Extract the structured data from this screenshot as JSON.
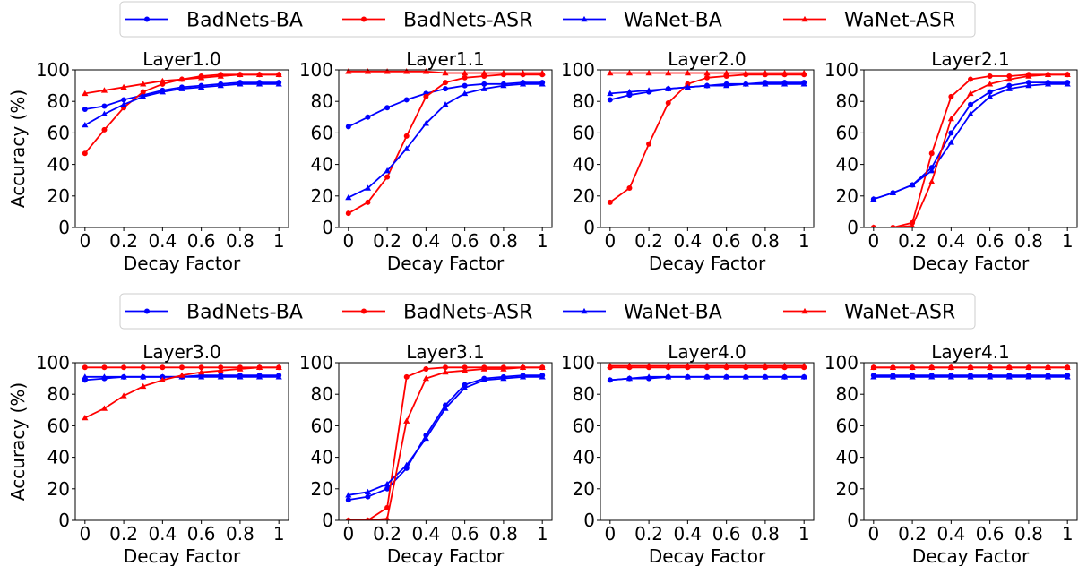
{
  "legend": {
    "entries": [
      {
        "label": "BadNets-BA",
        "color": "#0000ff",
        "marker": "circle"
      },
      {
        "label": "BadNets-ASR",
        "color": "#ff0000",
        "marker": "circle"
      },
      {
        "label": "WaNet-BA",
        "color": "#0000ff",
        "marker": "triangle"
      },
      {
        "label": "WaNet-ASR",
        "color": "#ff0000",
        "marker": "triangle"
      }
    ]
  },
  "chart_data": [
    {
      "type": "line",
      "title": "Layer1.0",
      "xlabel": "Decay Factor",
      "ylabel": "Accuracy (%)",
      "x": [
        0,
        0.1,
        0.2,
        0.3,
        0.4,
        0.5,
        0.6,
        0.7,
        0.8,
        0.9,
        1
      ],
      "xticks": [
        0,
        0.2,
        0.4,
        0.6,
        0.8,
        1
      ],
      "xtick_labels": [
        "0",
        "0.2",
        "0.4",
        "0.6",
        "0.8",
        "1"
      ],
      "yticks": [
        0,
        20,
        40,
        60,
        80,
        100
      ],
      "xlim": [
        -0.05,
        1.05
      ],
      "ylim": [
        0,
        100
      ],
      "grid": false,
      "series": [
        {
          "name": "BadNets-BA",
          "color": "#0000ff",
          "marker": "circle",
          "values": [
            75,
            77,
            81,
            84,
            87,
            89,
            90,
            91,
            92,
            92,
            92
          ]
        },
        {
          "name": "BadNets-ASR",
          "color": "#ff0000",
          "marker": "circle",
          "values": [
            47,
            62,
            76,
            86,
            91,
            94,
            96,
            97,
            97,
            97,
            97
          ]
        },
        {
          "name": "WaNet-BA",
          "color": "#0000ff",
          "marker": "triangle",
          "values": [
            65,
            72,
            78,
            83,
            86,
            88,
            89,
            90,
            91,
            91,
            91
          ]
        },
        {
          "name": "WaNet-ASR",
          "color": "#ff0000",
          "marker": "triangle",
          "values": [
            85,
            87,
            89,
            91,
            93,
            94,
            95,
            96,
            97,
            97,
            97
          ]
        }
      ]
    },
    {
      "type": "line",
      "title": "Layer1.1",
      "xlabel": "Decay Factor",
      "ylabel": "",
      "x": [
        0,
        0.1,
        0.2,
        0.3,
        0.4,
        0.5,
        0.6,
        0.7,
        0.8,
        0.9,
        1
      ],
      "xticks": [
        0,
        0.2,
        0.4,
        0.6,
        0.8,
        1
      ],
      "xtick_labels": [
        "0",
        "0.2",
        "0.4",
        "0.6",
        "0.8",
        "1"
      ],
      "yticks": [
        0,
        20,
        40,
        60,
        80,
        100
      ],
      "xlim": [
        -0.05,
        1.05
      ],
      "ylim": [
        0,
        100
      ],
      "grid": false,
      "series": [
        {
          "name": "BadNets-BA",
          "color": "#0000ff",
          "marker": "circle",
          "values": [
            64,
            70,
            76,
            81,
            85,
            88,
            90,
            91,
            91,
            92,
            92
          ]
        },
        {
          "name": "BadNets-ASR",
          "color": "#ff0000",
          "marker": "circle",
          "values": [
            9,
            16,
            32,
            58,
            83,
            92,
            95,
            96,
            97,
            97,
            97
          ]
        },
        {
          "name": "WaNet-BA",
          "color": "#0000ff",
          "marker": "triangle",
          "values": [
            19,
            25,
            36,
            50,
            66,
            78,
            85,
            88,
            90,
            91,
            91
          ]
        },
        {
          "name": "WaNet-ASR",
          "color": "#ff0000",
          "marker": "triangle",
          "values": [
            99,
            99,
            99,
            99,
            99,
            98,
            98,
            98,
            98,
            98,
            98
          ]
        }
      ]
    },
    {
      "type": "line",
      "title": "Layer2.0",
      "xlabel": "Decay Factor",
      "ylabel": "",
      "x": [
        0,
        0.1,
        0.2,
        0.3,
        0.4,
        0.5,
        0.6,
        0.7,
        0.8,
        0.9,
        1
      ],
      "xticks": [
        0,
        0.2,
        0.4,
        0.6,
        0.8,
        1
      ],
      "xtick_labels": [
        "0",
        "0.2",
        "0.4",
        "0.6",
        "0.8",
        "1"
      ],
      "yticks": [
        0,
        20,
        40,
        60,
        80,
        100
      ],
      "xlim": [
        -0.05,
        1.05
      ],
      "ylim": [
        0,
        100
      ],
      "grid": false,
      "series": [
        {
          "name": "BadNets-BA",
          "color": "#0000ff",
          "marker": "circle",
          "values": [
            81,
            84,
            86,
            88,
            89,
            90,
            91,
            91,
            92,
            92,
            92
          ]
        },
        {
          "name": "BadNets-ASR",
          "color": "#ff0000",
          "marker": "circle",
          "values": [
            16,
            25,
            53,
            79,
            91,
            95,
            96,
            97,
            97,
            97,
            97
          ]
        },
        {
          "name": "WaNet-BA",
          "color": "#0000ff",
          "marker": "triangle",
          "values": [
            85,
            86,
            87,
            88,
            89,
            90,
            90,
            91,
            91,
            91,
            91
          ]
        },
        {
          "name": "WaNet-ASR",
          "color": "#ff0000",
          "marker": "triangle",
          "values": [
            98,
            98,
            98,
            98,
            98,
            98,
            98,
            98,
            98,
            98,
            98
          ]
        }
      ]
    },
    {
      "type": "line",
      "title": "Layer2.1",
      "xlabel": "Decay Factor",
      "ylabel": "",
      "x": [
        0,
        0.1,
        0.2,
        0.3,
        0.4,
        0.5,
        0.6,
        0.7,
        0.8,
        0.9,
        1
      ],
      "xticks": [
        0,
        0.2,
        0.4,
        0.6,
        0.8,
        1
      ],
      "xtick_labels": [
        "0",
        "0.2",
        "0.4",
        "0.6",
        "0.8",
        "1"
      ],
      "yticks": [
        0,
        20,
        40,
        60,
        80,
        100
      ],
      "xlim": [
        -0.05,
        1.05
      ],
      "ylim": [
        0,
        100
      ],
      "grid": false,
      "series": [
        {
          "name": "BadNets-BA",
          "color": "#0000ff",
          "marker": "circle",
          "values": [
            18,
            22,
            27,
            38,
            60,
            78,
            86,
            90,
            92,
            92,
            92
          ]
        },
        {
          "name": "BadNets-ASR",
          "color": "#ff0000",
          "marker": "circle",
          "values": [
            0,
            0,
            3,
            47,
            83,
            94,
            96,
            96,
            97,
            97,
            97
          ]
        },
        {
          "name": "WaNet-BA",
          "color": "#0000ff",
          "marker": "triangle",
          "values": [
            18,
            22,
            27,
            36,
            54,
            72,
            83,
            88,
            90,
            91,
            91
          ]
        },
        {
          "name": "WaNet-ASR",
          "color": "#ff0000",
          "marker": "triangle",
          "values": [
            0,
            0,
            1,
            29,
            69,
            85,
            91,
            94,
            96,
            97,
            97
          ]
        }
      ]
    },
    {
      "type": "line",
      "title": "Layer3.0",
      "xlabel": "Decay Factor",
      "ylabel": "Accuracy (%)",
      "x": [
        0,
        0.1,
        0.2,
        0.3,
        0.4,
        0.5,
        0.6,
        0.7,
        0.8,
        0.9,
        1
      ],
      "xticks": [
        0,
        0.2,
        0.4,
        0.6,
        0.8,
        1
      ],
      "xtick_labels": [
        "0",
        "0.2",
        "0.4",
        "0.6",
        "0.8",
        "1"
      ],
      "yticks": [
        0,
        20,
        40,
        60,
        80,
        100
      ],
      "xlim": [
        -0.05,
        1.05
      ],
      "ylim": [
        0,
        100
      ],
      "grid": false,
      "series": [
        {
          "name": "BadNets-BA",
          "color": "#0000ff",
          "marker": "circle",
          "values": [
            89,
            90,
            91,
            91,
            91,
            91,
            92,
            92,
            92,
            92,
            92
          ]
        },
        {
          "name": "BadNets-ASR",
          "color": "#ff0000",
          "marker": "circle",
          "values": [
            97,
            97,
            97,
            97,
            97,
            97,
            97,
            97,
            97,
            97,
            97
          ]
        },
        {
          "name": "WaNet-BA",
          "color": "#0000ff",
          "marker": "triangle",
          "values": [
            91,
            91,
            91,
            91,
            91,
            91,
            91,
            91,
            91,
            91,
            91
          ]
        },
        {
          "name": "WaNet-ASR",
          "color": "#ff0000",
          "marker": "triangle",
          "values": [
            65,
            71,
            79,
            85,
            89,
            92,
            94,
            95,
            96,
            97,
            97
          ]
        }
      ]
    },
    {
      "type": "line",
      "title": "Layer3.1",
      "xlabel": "Decay Factor",
      "ylabel": "",
      "x": [
        0,
        0.1,
        0.2,
        0.3,
        0.4,
        0.5,
        0.6,
        0.7,
        0.8,
        0.9,
        1
      ],
      "xticks": [
        0,
        0.2,
        0.4,
        0.6,
        0.8,
        1
      ],
      "xtick_labels": [
        "0",
        "0.2",
        "0.4",
        "0.6",
        "0.8",
        "1"
      ],
      "yticks": [
        0,
        20,
        40,
        60,
        80,
        100
      ],
      "xlim": [
        -0.05,
        1.05
      ],
      "ylim": [
        0,
        100
      ],
      "grid": false,
      "series": [
        {
          "name": "BadNets-BA",
          "color": "#0000ff",
          "marker": "circle",
          "values": [
            13,
            15,
            20,
            33,
            54,
            73,
            86,
            90,
            91,
            92,
            92
          ]
        },
        {
          "name": "BadNets-ASR",
          "color": "#ff0000",
          "marker": "circle",
          "values": [
            0,
            0,
            8,
            91,
            96,
            97,
            97,
            97,
            97,
            97,
            97
          ]
        },
        {
          "name": "WaNet-BA",
          "color": "#0000ff",
          "marker": "triangle",
          "values": [
            16,
            18,
            23,
            35,
            52,
            71,
            84,
            89,
            90,
            91,
            91
          ]
        },
        {
          "name": "WaNet-ASR",
          "color": "#ff0000",
          "marker": "triangle",
          "values": [
            0,
            0,
            1,
            63,
            90,
            94,
            95,
            96,
            96,
            97,
            97
          ]
        }
      ]
    },
    {
      "type": "line",
      "title": "Layer4.0",
      "xlabel": "Decay Factor",
      "ylabel": "",
      "x": [
        0,
        0.1,
        0.2,
        0.3,
        0.4,
        0.5,
        0.6,
        0.7,
        0.8,
        0.9,
        1
      ],
      "xticks": [
        0,
        0.2,
        0.4,
        0.6,
        0.8,
        1
      ],
      "xtick_labels": [
        "0",
        "0.2",
        "0.4",
        "0.6",
        "0.8",
        "1"
      ],
      "yticks": [
        0,
        20,
        40,
        60,
        80,
        100
      ],
      "xlim": [
        -0.05,
        1.05
      ],
      "ylim": [
        0,
        100
      ],
      "grid": false,
      "series": [
        {
          "name": "BadNets-BA",
          "color": "#0000ff",
          "marker": "circle",
          "values": [
            89,
            90,
            90,
            91,
            91,
            91,
            91,
            91,
            91,
            91,
            91
          ]
        },
        {
          "name": "BadNets-ASR",
          "color": "#ff0000",
          "marker": "circle",
          "values": [
            97,
            97,
            97,
            97,
            97,
            97,
            97,
            97,
            97,
            97,
            97
          ]
        },
        {
          "name": "WaNet-BA",
          "color": "#0000ff",
          "marker": "triangle",
          "values": [
            89,
            90,
            91,
            91,
            91,
            91,
            91,
            91,
            91,
            91,
            91
          ]
        },
        {
          "name": "WaNet-ASR",
          "color": "#ff0000",
          "marker": "triangle",
          "values": [
            98,
            98,
            98,
            98,
            98,
            98,
            98,
            98,
            98,
            98,
            98
          ]
        }
      ]
    },
    {
      "type": "line",
      "title": "Layer4.1",
      "xlabel": "Decay Factor",
      "ylabel": "",
      "x": [
        0,
        0.1,
        0.2,
        0.3,
        0.4,
        0.5,
        0.6,
        0.7,
        0.8,
        0.9,
        1
      ],
      "xticks": [
        0,
        0.2,
        0.4,
        0.6,
        0.8,
        1
      ],
      "xtick_labels": [
        "0",
        "0.2",
        "0.4",
        "0.6",
        "0.8",
        "1"
      ],
      "yticks": [
        0,
        20,
        40,
        60,
        80,
        100
      ],
      "xlim": [
        -0.05,
        1.05
      ],
      "ylim": [
        0,
        100
      ],
      "grid": false,
      "series": [
        {
          "name": "BadNets-BA",
          "color": "#0000ff",
          "marker": "circle",
          "values": [
            92,
            92,
            92,
            92,
            92,
            92,
            92,
            92,
            92,
            92,
            92
          ]
        },
        {
          "name": "BadNets-ASR",
          "color": "#ff0000",
          "marker": "circle",
          "values": [
            97,
            97,
            97,
            97,
            97,
            97,
            97,
            97,
            97,
            97,
            97
          ]
        },
        {
          "name": "WaNet-BA",
          "color": "#0000ff",
          "marker": "triangle",
          "values": [
            91,
            91,
            91,
            91,
            91,
            91,
            91,
            91,
            91,
            91,
            91
          ]
        },
        {
          "name": "WaNet-ASR",
          "color": "#ff0000",
          "marker": "triangle",
          "values": [
            97,
            97,
            97,
            97,
            97,
            97,
            97,
            97,
            97,
            97,
            97
          ]
        }
      ]
    }
  ]
}
